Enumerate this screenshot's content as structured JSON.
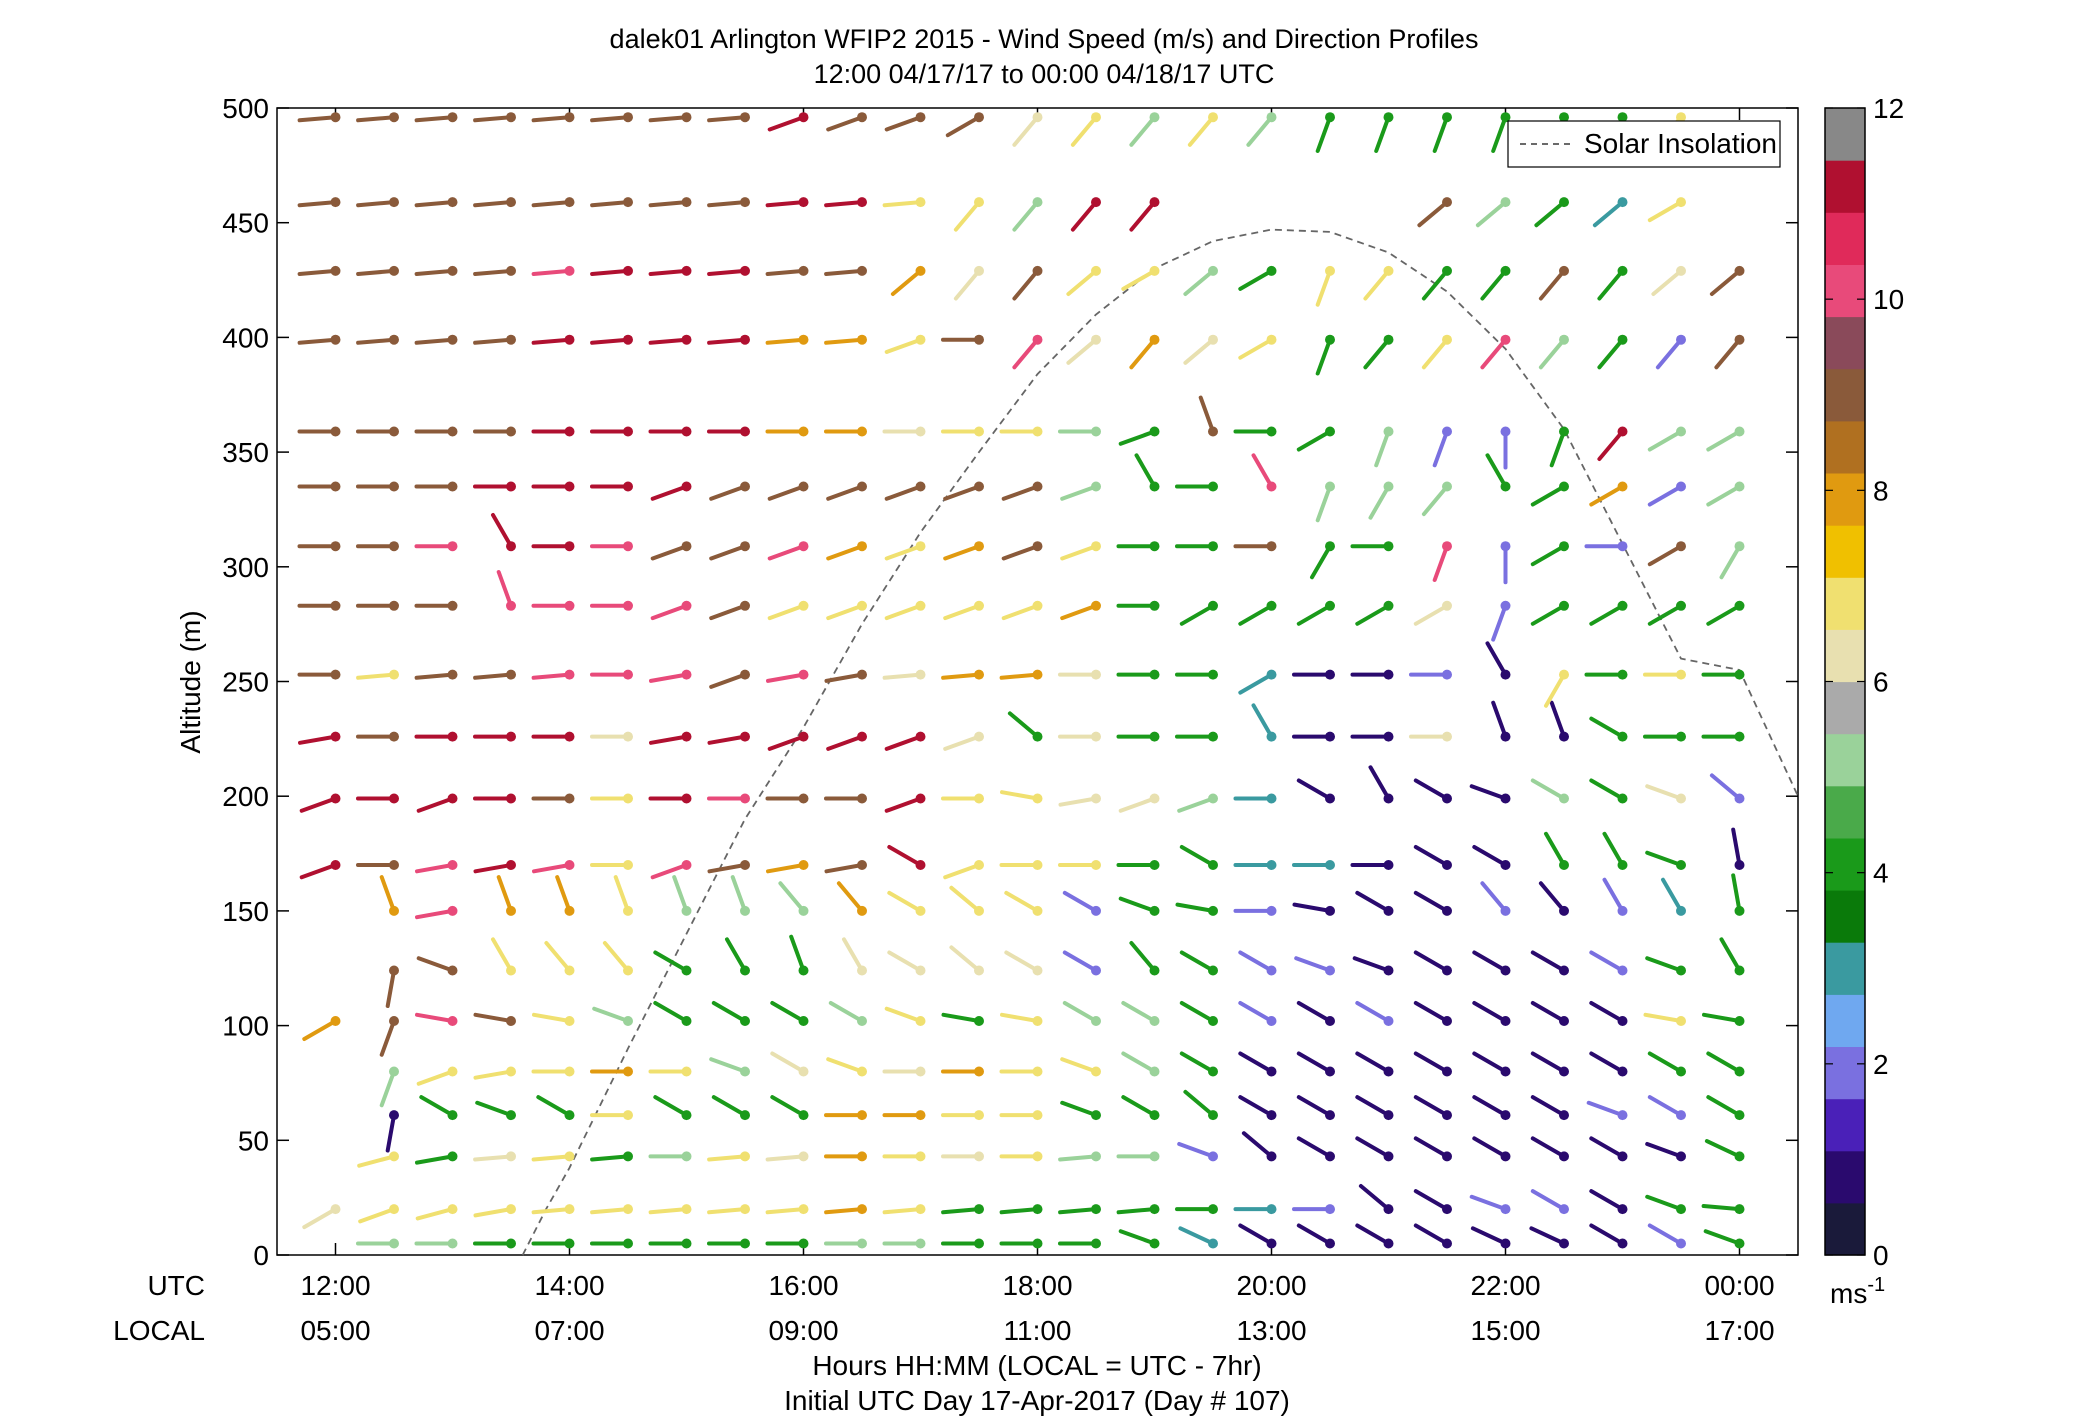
{
  "chart_data": {
    "type": "wind_barb_profile",
    "title_lines": [
      "dalek01 Arlington WFIP2 2015 - Wind Speed (m/s) and Direction Profiles",
      "12:00 04/17/17 to 00:00 04/18/17  UTC"
    ],
    "ylabel": "Altitude (m)",
    "ylim": [
      0,
      500
    ],
    "yticks": [
      "0",
      "50",
      "100",
      "150",
      "200",
      "250",
      "300",
      "350",
      "400",
      "450",
      "500"
    ],
    "x_row_labels": {
      "utc": "UTC",
      "local": "LOCAL"
    },
    "x_utc_ticks": [
      "12:00",
      "14:00",
      "16:00",
      "18:00",
      "20:00",
      "22:00",
      "00:00"
    ],
    "x_local_ticks": [
      "05:00",
      "07:00",
      "09:00",
      "11:00",
      "13:00",
      "15:00",
      "17:00"
    ],
    "xlabel_lines": [
      "Hours HH:MM  (LOCAL = UTC - 7hr)",
      "Initial UTC Day 17-Apr-2017 (Day # 107)"
    ],
    "x_range_hours": [
      11.5,
      24.5
    ],
    "legend": {
      "entries": [
        "Solar Insolation"
      ],
      "location": "top-right"
    },
    "solar_insolation": {
      "style": "dashed",
      "color": "#666666",
      "hours": [
        13.6,
        13.8,
        14,
        14.5,
        15,
        15.5,
        16,
        16.5,
        17,
        17.5,
        18,
        18.5,
        19,
        19.5,
        20,
        20.5,
        21,
        21.5,
        22,
        22.5,
        23,
        23.5,
        24,
        24.5
      ],
      "altitude_units": [
        0,
        20,
        38,
        90,
        140,
        190,
        230,
        275,
        315,
        350,
        384,
        410,
        430,
        442,
        447,
        446,
        437,
        420,
        395,
        360,
        310,
        260,
        255,
        200
      ]
    },
    "colorbar": {
      "min": 0,
      "max": 12,
      "ticks": [
        "0",
        "2",
        "4",
        "6",
        "8",
        "10",
        "12"
      ],
      "unit": "ms",
      "unit_exp": "-1",
      "colors": [
        "#1a1a3a",
        "#2a0a6e",
        "#4a20b8",
        "#7a70e0",
        "#6fa8f0",
        "#3a9aa0",
        "#0a7a0a",
        "#1a9a1a",
        "#4aaa4a",
        "#9ad29a",
        "#aaaaaa",
        "#e8e0b0",
        "#f0e070",
        "#f0c000",
        "#e09a10",
        "#b07020",
        "#8a5a3a",
        "#8a4a5a",
        "#e84a7a",
        "#e02a5a",
        "#b01030",
        "#888888"
      ]
    },
    "wind": {
      "hours": [
        12,
        12.5,
        13,
        13.5,
        14,
        14.5,
        15,
        15.5,
        16,
        16.5,
        17,
        17.5,
        18,
        18.5,
        19,
        19.5,
        20,
        20.5,
        21,
        21.5,
        22,
        22.5,
        23,
        23.5,
        24
      ],
      "altitudes": [
        5,
        20,
        43,
        61,
        80,
        102,
        124,
        150,
        170,
        199,
        226,
        253,
        283,
        309,
        335,
        359,
        399,
        429,
        459,
        496
      ],
      "speed_ms": [
        [
          null,
          5,
          5,
          4,
          4,
          4,
          4,
          4,
          4,
          5,
          5,
          4,
          4,
          4,
          4,
          3,
          1,
          1,
          1,
          1,
          1,
          1,
          1,
          2,
          4
        ],
        [
          6,
          7,
          7,
          7,
          7,
          7,
          7,
          7,
          7,
          8,
          7,
          4,
          4,
          4,
          4,
          4,
          3,
          2,
          1,
          1,
          2,
          2,
          1,
          4,
          4
        ],
        [
          null,
          7,
          4,
          6,
          7,
          4,
          5,
          7,
          6,
          8,
          7,
          6,
          7,
          5,
          5,
          2,
          1,
          1,
          1,
          1,
          1,
          1,
          1,
          1,
          4
        ],
        [
          null,
          1,
          4,
          4,
          4,
          7,
          4,
          4,
          4,
          8,
          8,
          7,
          7,
          4,
          4,
          4,
          1,
          1,
          1,
          1,
          1,
          1,
          2,
          2,
          4
        ],
        [
          null,
          5,
          7,
          7,
          7,
          8,
          7,
          5,
          6,
          7,
          6,
          8,
          7,
          7,
          5,
          4,
          1,
          1,
          1,
          1,
          1,
          1,
          1,
          4,
          4
        ],
        [
          8,
          9,
          10,
          9,
          7,
          5,
          4,
          4,
          4,
          5,
          7,
          4,
          7,
          5,
          5,
          4,
          2,
          1,
          2,
          1,
          1,
          1,
          1,
          7,
          4
        ],
        [
          null,
          9,
          9,
          7,
          7,
          7,
          4,
          4,
          4,
          6,
          6,
          6,
          6,
          2,
          4,
          4,
          2,
          2,
          1,
          1,
          1,
          1,
          2,
          4,
          4
        ],
        [
          null,
          8,
          10,
          8,
          8,
          7,
          5,
          5,
          5,
          8,
          7,
          7,
          7,
          2,
          4,
          4,
          2,
          1,
          1,
          1,
          2,
          1,
          2,
          3,
          4
        ],
        [
          11,
          9,
          10,
          11,
          10,
          7,
          10,
          9,
          8,
          9,
          11,
          7,
          7,
          7,
          4,
          4,
          3,
          3,
          1,
          1,
          1,
          4,
          4,
          4,
          1
        ],
        [
          11,
          11,
          11,
          11,
          9,
          7,
          11,
          10,
          9,
          9,
          11,
          7,
          7,
          6,
          6,
          5,
          3,
          1,
          1,
          1,
          1,
          5,
          4,
          6,
          2
        ],
        [
          11,
          9,
          11,
          11,
          11,
          6,
          11,
          11,
          11,
          11,
          11,
          6,
          4,
          6,
          4,
          4,
          3,
          1,
          1,
          6,
          1,
          1,
          4,
          4,
          4
        ],
        [
          9,
          7,
          9,
          9,
          10,
          10,
          10,
          9,
          10,
          9,
          6,
          8,
          8,
          6,
          4,
          4,
          3,
          1,
          1,
          2,
          1,
          7,
          4,
          7,
          4
        ],
        [
          9,
          9,
          9,
          10,
          10,
          10,
          10,
          9,
          7,
          7,
          7,
          7,
          7,
          8,
          4,
          4,
          4,
          4,
          4,
          6,
          2,
          4,
          4,
          4,
          4
        ],
        [
          9,
          9,
          10,
          11,
          11,
          10,
          9,
          9,
          10,
          8,
          7,
          8,
          9,
          7,
          4,
          4,
          9,
          4,
          4,
          10,
          2,
          4,
          2,
          9,
          5
        ],
        [
          9,
          9,
          9,
          11,
          11,
          11,
          11,
          9,
          9,
          9,
          9,
          9,
          9,
          5,
          4,
          4,
          10,
          5,
          5,
          5,
          4,
          4,
          8,
          2,
          5
        ],
        [
          9,
          9,
          9,
          9,
          11,
          11,
          11,
          11,
          8,
          8,
          6,
          7,
          7,
          5,
          4,
          9,
          4,
          4,
          5,
          2,
          2,
          4,
          11,
          5,
          5
        ],
        [
          9,
          9,
          9,
          9,
          11,
          11,
          11,
          11,
          8,
          8,
          7,
          9,
          10,
          6,
          8,
          6,
          7,
          4,
          4,
          7,
          10,
          5,
          4,
          2,
          9
        ],
        [
          9,
          9,
          9,
          9,
          10,
          11,
          11,
          11,
          9,
          9,
          8,
          6,
          9,
          7,
          7,
          5,
          4,
          7,
          7,
          4,
          4,
          9,
          4,
          6,
          9
        ],
        [
          9,
          9,
          9,
          9,
          9,
          9,
          9,
          9,
          11,
          11,
          7,
          7,
          5,
          11,
          11,
          null,
          null,
          null,
          null,
          9,
          5,
          4,
          3,
          7,
          null
        ],
        [
          9,
          9,
          9,
          9,
          9,
          9,
          9,
          9,
          11,
          9,
          9,
          9,
          6,
          7,
          5,
          7,
          5,
          4,
          4,
          4,
          4,
          4,
          4,
          7,
          null
        ]
      ],
      "direction_deg": [
        [
          null,
          270,
          270,
          270,
          270,
          270,
          270,
          270,
          270,
          270,
          270,
          270,
          270,
          270,
          290,
          295,
          300,
          300,
          300,
          300,
          295,
          295,
          300,
          300,
          290
        ],
        [
          240,
          250,
          255,
          260,
          265,
          265,
          265,
          265,
          265,
          265,
          265,
          265,
          265,
          265,
          265,
          270,
          270,
          270,
          310,
          300,
          290,
          300,
          300,
          290,
          275
        ],
        [
          null,
          255,
          260,
          265,
          265,
          265,
          270,
          265,
          265,
          270,
          270,
          270,
          270,
          265,
          270,
          290,
          310,
          300,
          300,
          300,
          300,
          300,
          300,
          290,
          295
        ],
        [
          null,
          190,
          300,
          290,
          300,
          270,
          300,
          300,
          300,
          270,
          270,
          270,
          270,
          290,
          300,
          310,
          300,
          300,
          300,
          300,
          300,
          300,
          290,
          300,
          300
        ],
        [
          null,
          200,
          250,
          260,
          270,
          270,
          270,
          290,
          300,
          290,
          270,
          270,
          270,
          290,
          300,
          300,
          300,
          300,
          300,
          300,
          300,
          300,
          300,
          300,
          300
        ],
        [
          240,
          200,
          280,
          280,
          280,
          290,
          300,
          300,
          300,
          300,
          290,
          280,
          280,
          300,
          300,
          300,
          300,
          300,
          300,
          300,
          300,
          300,
          300,
          280,
          280
        ],
        [
          null,
          190,
          290,
          330,
          320,
          320,
          300,
          330,
          340,
          330,
          300,
          310,
          300,
          300,
          320,
          300,
          300,
          290,
          290,
          300,
          300,
          300,
          300,
          290,
          330
        ],
        [
          null,
          340,
          260,
          340,
          340,
          340,
          340,
          340,
          320,
          320,
          300,
          310,
          300,
          300,
          290,
          280,
          270,
          280,
          300,
          300,
          320,
          320,
          330,
          330,
          350
        ],
        [
          250,
          270,
          260,
          260,
          260,
          270,
          250,
          260,
          260,
          260,
          300,
          250,
          270,
          270,
          270,
          300,
          270,
          270,
          270,
          300,
          300,
          330,
          330,
          290,
          350
        ],
        [
          250,
          270,
          250,
          270,
          270,
          270,
          270,
          270,
          270,
          270,
          250,
          270,
          280,
          260,
          250,
          250,
          270,
          300,
          330,
          300,
          290,
          300,
          300,
          290,
          310
        ],
        [
          260,
          270,
          270,
          270,
          270,
          270,
          260,
          260,
          250,
          250,
          250,
          250,
          310,
          270,
          270,
          270,
          330,
          270,
          270,
          270,
          340,
          340,
          300,
          270,
          270
        ],
        [
          270,
          265,
          265,
          265,
          265,
          270,
          260,
          250,
          260,
          260,
          265,
          265,
          265,
          270,
          270,
          270,
          240,
          270,
          270,
          270,
          330,
          210,
          270,
          270,
          270
        ],
        [
          270,
          270,
          270,
          340,
          270,
          270,
          250,
          250,
          250,
          250,
          250,
          250,
          250,
          250,
          270,
          240,
          240,
          240,
          240,
          240,
          200,
          240,
          240,
          240,
          240
        ],
        [
          270,
          270,
          270,
          330,
          270,
          270,
          250,
          250,
          250,
          250,
          250,
          250,
          250,
          250,
          270,
          270,
          270,
          210,
          270,
          200,
          180,
          240,
          270,
          240,
          210
        ],
        [
          270,
          270,
          270,
          270,
          270,
          270,
          250,
          250,
          250,
          250,
          250,
          250,
          250,
          250,
          330,
          270,
          330,
          200,
          210,
          220,
          330,
          240,
          240,
          240,
          240
        ],
        [
          270,
          270,
          270,
          270,
          270,
          270,
          270,
          270,
          270,
          270,
          270,
          270,
          270,
          270,
          250,
          340,
          270,
          240,
          200,
          200,
          180,
          200,
          220,
          240,
          240
        ],
        [
          265,
          265,
          265,
          265,
          265,
          265,
          265,
          265,
          265,
          265,
          250,
          270,
          220,
          230,
          220,
          230,
          240,
          200,
          220,
          220,
          220,
          220,
          220,
          220,
          220
        ],
        [
          265,
          265,
          265,
          265,
          265,
          265,
          265,
          265,
          265,
          265,
          230,
          220,
          220,
          230,
          240,
          230,
          240,
          200,
          220,
          220,
          220,
          220,
          220,
          230,
          230
        ],
        [
          265,
          265,
          265,
          265,
          265,
          265,
          265,
          265,
          265,
          265,
          265,
          220,
          220,
          220,
          220,
          null,
          null,
          null,
          null,
          230,
          230,
          230,
          230,
          240,
          null
        ],
        [
          265,
          265,
          265,
          265,
          265,
          265,
          265,
          265,
          250,
          250,
          250,
          240,
          220,
          220,
          220,
          220,
          220,
          200,
          200,
          200,
          200,
          200,
          200,
          220,
          null
        ]
      ]
    }
  }
}
